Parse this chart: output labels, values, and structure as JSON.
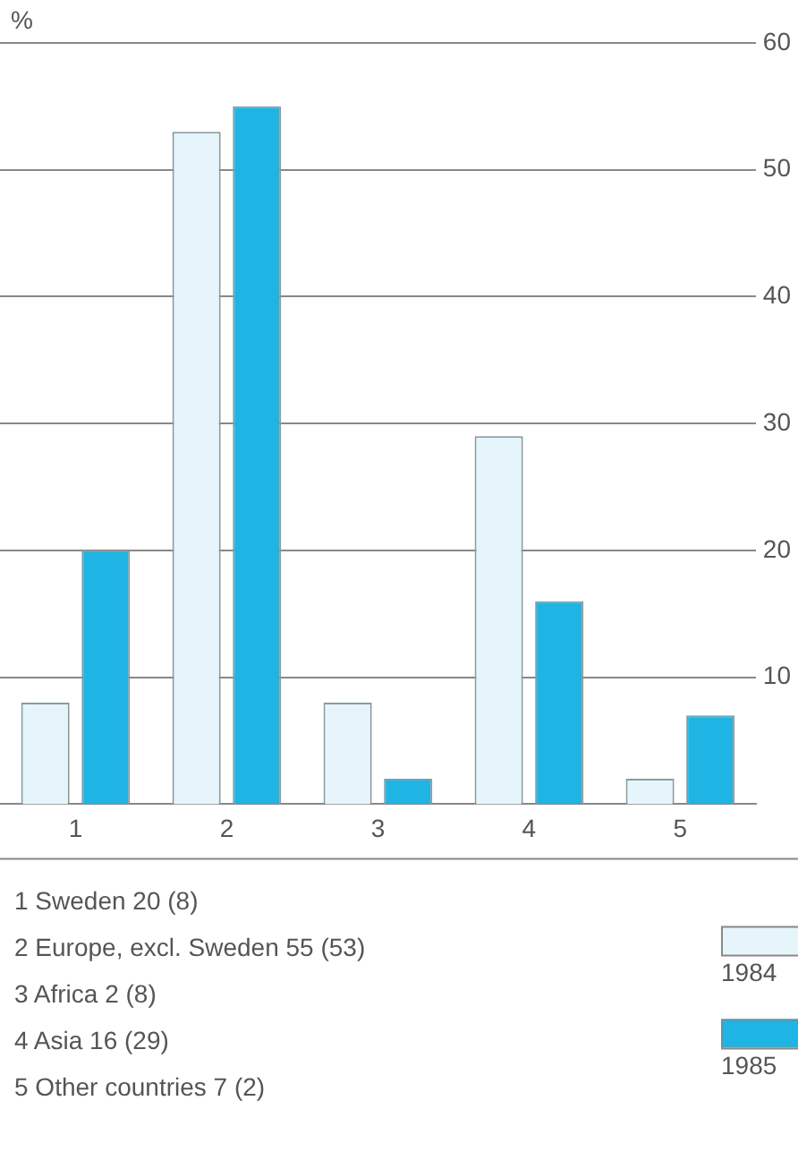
{
  "chart_data": {
    "type": "bar",
    "ylabel": "%",
    "categories": [
      "1",
      "2",
      "3",
      "4",
      "5"
    ],
    "series": [
      {
        "name": "1984",
        "color": "#e6f5fb",
        "values": [
          8,
          53,
          8,
          29,
          2
        ]
      },
      {
        "name": "1985",
        "color": "#1eb4e4",
        "values": [
          20,
          55,
          2,
          16,
          7
        ]
      }
    ],
    "ylim": [
      0,
      60
    ],
    "yticks": [
      10,
      20,
      30,
      40,
      50,
      60
    ],
    "grid": "y",
    "legend": "bottom right",
    "annotations": [
      "1 Sweden 20 (8)",
      "2 Europe, excl. Sweden 55 (53)",
      "3 Africa 2 (8)",
      "4 Asia 16 (29)",
      "5 Other countries 7 (2)"
    ]
  }
}
